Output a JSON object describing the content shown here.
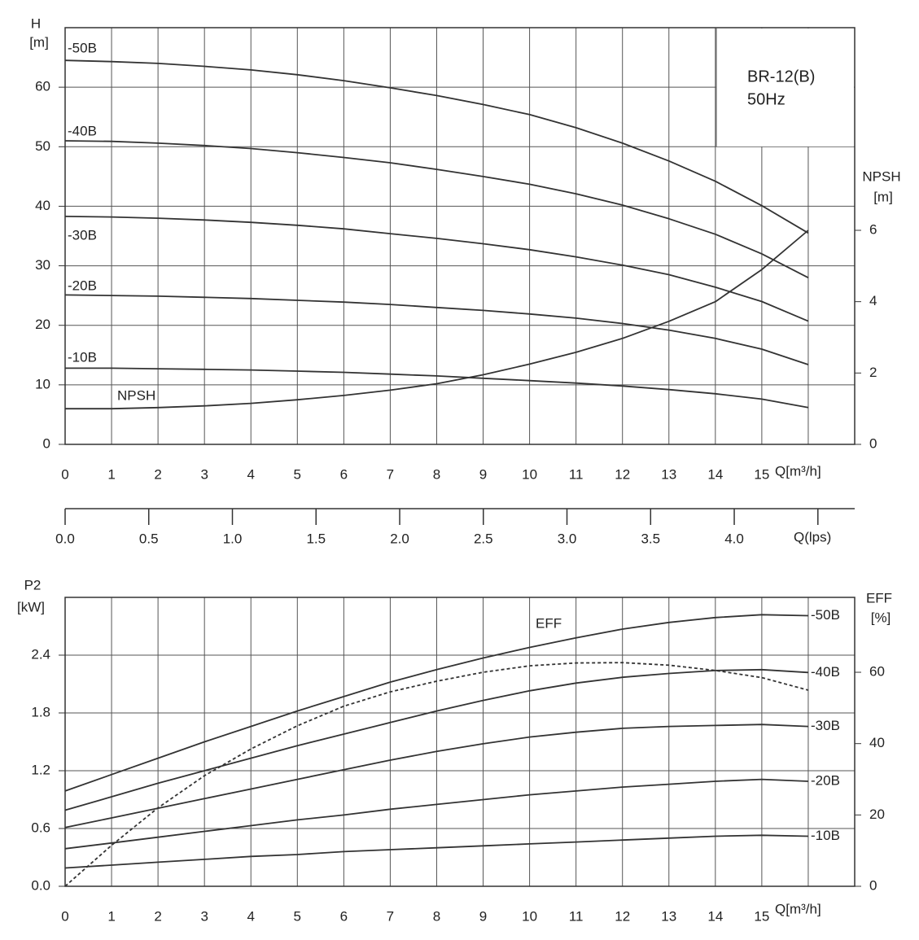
{
  "chart_data": [
    {
      "type": "line",
      "title": "BR-12(B)",
      "subtitle": "50Hz",
      "ylabel": "H",
      "yunit": "[m]",
      "y2label": "NPSH",
      "y2unit": "[m]",
      "xlabel": "Q[m³/h]",
      "x": [
        0,
        1,
        2,
        3,
        4,
        5,
        6,
        7,
        8,
        9,
        10,
        11,
        12,
        13,
        14,
        15,
        16
      ],
      "xlim": [
        0,
        17
      ],
      "xticks": [
        0,
        1,
        2,
        3,
        4,
        5,
        6,
        7,
        8,
        9,
        10,
        11,
        12,
        13,
        14,
        15
      ],
      "minor_xticks": [
        16
      ],
      "ylim": [
        0,
        70
      ],
      "yticks": [
        0,
        10,
        20,
        30,
        40,
        50,
        60
      ],
      "y2lim": [
        0,
        11.68
      ],
      "y2ticks": [
        0,
        2,
        4,
        6
      ],
      "grid": true,
      "color": "#333333",
      "series": [
        {
          "name": "-50B",
          "values": [
            64.5,
            64.3,
            64,
            63.5,
            62.9,
            62.1,
            61.1,
            59.9,
            58.6,
            57.1,
            55.4,
            53.2,
            50.6,
            47.6,
            44.2,
            40.1,
            35.5
          ]
        },
        {
          "name": "-40B",
          "values": [
            51,
            50.9,
            50.6,
            50.2,
            49.7,
            49,
            48.2,
            47.3,
            46.2,
            45,
            43.7,
            42.1,
            40.2,
            37.9,
            35.3,
            32,
            28
          ]
        },
        {
          "name": "-30B",
          "values": [
            38.3,
            38.2,
            38,
            37.7,
            37.3,
            36.8,
            36.2,
            35.4,
            34.6,
            33.7,
            32.7,
            31.5,
            30.1,
            28.5,
            26.4,
            24,
            20.7
          ]
        },
        {
          "name": "-20B",
          "values": [
            25.1,
            25,
            24.9,
            24.7,
            24.5,
            24.2,
            23.9,
            23.5,
            23,
            22.5,
            21.9,
            21.2,
            20.3,
            19.2,
            17.8,
            16,
            13.4
          ]
        },
        {
          "name": "-10B",
          "values": [
            12.8,
            12.8,
            12.7,
            12.6,
            12.5,
            12.3,
            12.1,
            11.8,
            11.5,
            11.1,
            10.7,
            10.3,
            9.8,
            9.2,
            8.5,
            7.6,
            6.2
          ]
        },
        {
          "name": "NPSH",
          "axis": "y2",
          "values": [
            1.0,
            1.0,
            1.03,
            1.08,
            1.15,
            1.25,
            1.37,
            1.52,
            1.7,
            1.95,
            2.25,
            2.58,
            2.97,
            3.45,
            4.0,
            4.9,
            6.0
          ]
        }
      ]
    },
    {
      "type": "axis",
      "xlabel": "Q(lps)",
      "xlim": [
        0,
        4.72
      ],
      "xticks": [
        {
          "value": 0,
          "label": "0.0"
        },
        0.5,
        {
          "value": 1,
          "label": "1.0"
        },
        1.5,
        {
          "value": 2,
          "label": "2.0"
        },
        2.5,
        {
          "value": 3,
          "label": "3.0"
        },
        3.5,
        {
          "value": 4,
          "label": "4.0"
        }
      ],
      "minor_xticks": [
        4.5
      ]
    },
    {
      "type": "line",
      "ylabel": "P2",
      "yunit": "[kW]",
      "y2label": "EFF",
      "y2unit": "[%]",
      "xlabel": "Q[m³/h]",
      "x": [
        0,
        1,
        2,
        3,
        4,
        5,
        6,
        7,
        8,
        9,
        10,
        11,
        12,
        13,
        14,
        15,
        16
      ],
      "xlim": [
        0,
        17
      ],
      "xticks": [
        0,
        1,
        2,
        3,
        4,
        5,
        6,
        7,
        8,
        9,
        10,
        11,
        12,
        13,
        14,
        15
      ],
      "minor_xticks": [
        16
      ],
      "ylim": [
        0,
        3.0
      ],
      "yticks": [
        {
          "value": 0,
          "label": "0.0"
        },
        0.6,
        1.2,
        1.8,
        2.4
      ],
      "y2lim": [
        0,
        81
      ],
      "y2ticks": [
        0,
        20,
        40,
        60
      ],
      "grid": true,
      "color": "#333333",
      "series": [
        {
          "name": "-50B",
          "values": [
            0.99,
            1.16,
            1.33,
            1.5,
            1.66,
            1.82,
            1.97,
            2.12,
            2.25,
            2.37,
            2.48,
            2.58,
            2.67,
            2.74,
            2.79,
            2.82,
            2.81
          ]
        },
        {
          "name": "-40B",
          "values": [
            0.79,
            0.93,
            1.07,
            1.2,
            1.33,
            1.46,
            1.58,
            1.7,
            1.82,
            1.93,
            2.03,
            2.11,
            2.17,
            2.21,
            2.24,
            2.25,
            2.22
          ]
        },
        {
          "name": "-30B",
          "values": [
            0.61,
            0.71,
            0.81,
            0.91,
            1.01,
            1.11,
            1.21,
            1.31,
            1.4,
            1.48,
            1.55,
            1.6,
            1.64,
            1.66,
            1.67,
            1.68,
            1.66
          ]
        },
        {
          "name": "-20B",
          "values": [
            0.39,
            0.45,
            0.51,
            0.57,
            0.63,
            0.69,
            0.74,
            0.8,
            0.85,
            0.9,
            0.95,
            0.99,
            1.03,
            1.06,
            1.09,
            1.11,
            1.09
          ]
        },
        {
          "name": "-10B",
          "values": [
            0.19,
            0.22,
            0.25,
            0.28,
            0.31,
            0.33,
            0.36,
            0.38,
            0.4,
            0.42,
            0.44,
            0.46,
            0.48,
            0.5,
            0.52,
            0.53,
            0.52
          ]
        },
        {
          "name": "EFF",
          "axis": "y2",
          "dashed": true,
          "values": [
            0,
            11.5,
            22,
            31,
            38.5,
            45,
            50.5,
            54.5,
            57.5,
            60,
            61.8,
            62.6,
            62.7,
            62,
            60.5,
            58.5,
            55
          ]
        }
      ]
    }
  ]
}
